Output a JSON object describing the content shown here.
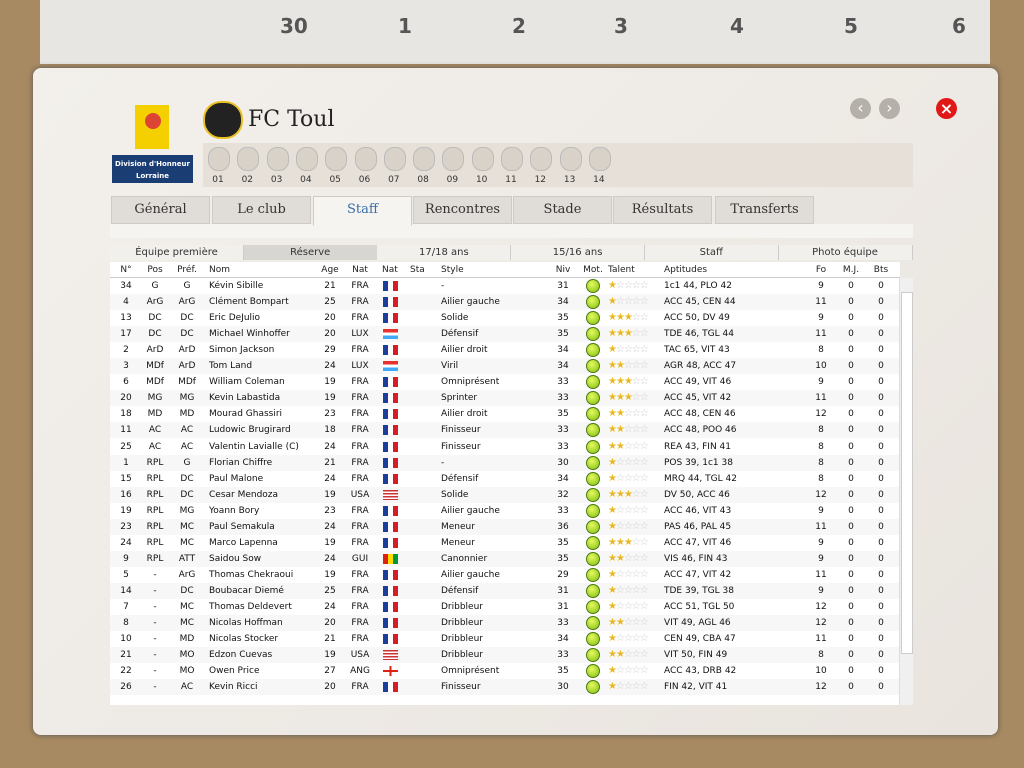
{
  "calendar": {
    "days": [
      30,
      1,
      2,
      3,
      4,
      5,
      6
    ]
  },
  "header": {
    "title": "FC Toul",
    "league": [
      "Division d'Honneur",
      "Lorraine"
    ],
    "clubs": [
      "01",
      "02",
      "03",
      "04",
      "05",
      "06",
      "07",
      "08",
      "09",
      "10",
      "11",
      "12",
      "13",
      "14"
    ]
  },
  "tabs": [
    "Général",
    "Le club",
    "Staff",
    "Rencontres",
    "Stade",
    "Résultats",
    "Transferts"
  ],
  "subtabs": [
    "Équipe première",
    "Réserve",
    "17/18 ans",
    "15/16 ans",
    "Staff",
    "Photo équipe"
  ],
  "table": {
    "columns": [
      "N°",
      "Pos",
      "Préf.",
      "Nom",
      "Age",
      "Nat",
      "Nat",
      "Sta",
      "Style",
      "Niv",
      "Mot.",
      "Talent",
      "Aptitudes",
      "Fo",
      "M.J.",
      "Bts"
    ],
    "rows": [
      {
        "no": 34,
        "pos": "G",
        "pref": "G",
        "name": "Kévin Sibille",
        "age": 21,
        "nat": "FRA",
        "style": "-",
        "niv": 31,
        "talent": 1,
        "apt": "1c1 44, PLO 42",
        "fo": 9,
        "mj": 0,
        "bts": 0
      },
      {
        "no": 4,
        "pos": "ArG",
        "pref": "ArG",
        "name": "Clément Bompart",
        "age": 25,
        "nat": "FRA",
        "style": "Ailier gauche",
        "niv": 34,
        "talent": 1,
        "apt": "ACC 45, CEN 44",
        "fo": 11,
        "mj": 0,
        "bts": 0
      },
      {
        "no": 13,
        "pos": "DC",
        "pref": "DC",
        "name": "Eric DeJulio",
        "age": 20,
        "nat": "FRA",
        "style": "Solide",
        "niv": 35,
        "talent": 3,
        "apt": "ACC 50, DV 49",
        "fo": 9,
        "mj": 0,
        "bts": 0
      },
      {
        "no": 17,
        "pos": "DC",
        "pref": "DC",
        "name": "Michael Winhoffer",
        "age": 20,
        "nat": "LUX",
        "style": "Défensif",
        "niv": 35,
        "talent": 3,
        "apt": "TDE 46, TGL 44",
        "fo": 11,
        "mj": 0,
        "bts": 0
      },
      {
        "no": 2,
        "pos": "ArD",
        "pref": "ArD",
        "name": "Simon Jackson",
        "age": 29,
        "nat": "FRA",
        "style": "Ailier droit",
        "niv": 34,
        "talent": 1,
        "apt": "TAC 65, VIT 43",
        "fo": 8,
        "mj": 0,
        "bts": 0
      },
      {
        "no": 3,
        "pos": "MDf",
        "pref": "ArD",
        "name": "Tom Land",
        "age": 24,
        "nat": "LUX",
        "style": "Viril",
        "niv": 34,
        "talent": 2,
        "apt": "AGR 48, ACC 47",
        "fo": 10,
        "mj": 0,
        "bts": 0
      },
      {
        "no": 6,
        "pos": "MDf",
        "pref": "MDf",
        "name": "William Coleman",
        "age": 19,
        "nat": "FRA",
        "style": "Omniprésent",
        "niv": 33,
        "talent": 3,
        "apt": "ACC 49, VIT 46",
        "fo": 9,
        "mj": 0,
        "bts": 0
      },
      {
        "no": 20,
        "pos": "MG",
        "pref": "MG",
        "name": "Kevin Labastida",
        "age": 19,
        "nat": "FRA",
        "style": "Sprinter",
        "niv": 33,
        "talent": 3,
        "apt": "ACC 45, VIT 42",
        "fo": 11,
        "mj": 0,
        "bts": 0
      },
      {
        "no": 18,
        "pos": "MD",
        "pref": "MD",
        "name": "Mourad Ghassiri",
        "age": 23,
        "nat": "FRA",
        "style": "Ailier droit",
        "niv": 35,
        "talent": 2,
        "apt": "ACC 48, CEN 46",
        "fo": 12,
        "mj": 0,
        "bts": 0
      },
      {
        "no": 11,
        "pos": "AC",
        "pref": "AC",
        "name": "Ludowic Brugirard",
        "age": 18,
        "nat": "FRA",
        "style": "Finisseur",
        "niv": 33,
        "talent": 2,
        "apt": "ACC 48, POO 46",
        "fo": 8,
        "mj": 0,
        "bts": 0
      },
      {
        "no": 25,
        "pos": "AC",
        "pref": "AC",
        "name": "Valentin Lavialle (C)",
        "age": 24,
        "nat": "FRA",
        "style": "Finisseur",
        "niv": 33,
        "talent": 2,
        "apt": "REA 43, FIN 41",
        "fo": 8,
        "mj": 0,
        "bts": 0
      },
      {
        "no": 1,
        "pos": "RPL",
        "pref": "G",
        "name": "Florian Chiffre",
        "age": 21,
        "nat": "FRA",
        "style": "-",
        "niv": 30,
        "talent": 1,
        "apt": "POS 39, 1c1 38",
        "fo": 8,
        "mj": 0,
        "bts": 0
      },
      {
        "no": 15,
        "pos": "RPL",
        "pref": "DC",
        "name": "Paul Malone",
        "age": 24,
        "nat": "FRA",
        "style": "Défensif",
        "niv": 34,
        "talent": 1,
        "apt": "MRQ 44, TGL 42",
        "fo": 8,
        "mj": 0,
        "bts": 0
      },
      {
        "no": 16,
        "pos": "RPL",
        "pref": "DC",
        "name": "Cesar Mendoza",
        "age": 19,
        "nat": "USA",
        "style": "Solide",
        "niv": 32,
        "talent": 3,
        "apt": "DV 50, ACC 46",
        "fo": 12,
        "mj": 0,
        "bts": 0
      },
      {
        "no": 19,
        "pos": "RPL",
        "pref": "MG",
        "name": "Yoann Bory",
        "age": 23,
        "nat": "FRA",
        "style": "Ailier gauche",
        "niv": 33,
        "talent": 1,
        "apt": "ACC 46, VIT 43",
        "fo": 9,
        "mj": 0,
        "bts": 0
      },
      {
        "no": 23,
        "pos": "RPL",
        "pref": "MC",
        "name": "Paul Semakula",
        "age": 24,
        "nat": "FRA",
        "style": "Meneur",
        "niv": 36,
        "talent": 1,
        "apt": "PAS 46, PAL 45",
        "fo": 11,
        "mj": 0,
        "bts": 0
      },
      {
        "no": 24,
        "pos": "RPL",
        "pref": "MC",
        "name": "Marco Lapenna",
        "age": 19,
        "nat": "FRA",
        "style": "Meneur",
        "niv": 35,
        "talent": 3,
        "apt": "ACC 47, VIT 46",
        "fo": 9,
        "mj": 0,
        "bts": 0
      },
      {
        "no": 9,
        "pos": "RPL",
        "pref": "ATT",
        "name": "Saidou Sow",
        "age": 24,
        "nat": "GUI",
        "style": "Canonnier",
        "niv": 35,
        "talent": 2,
        "apt": "VIS 46, FIN 43",
        "fo": 9,
        "mj": 0,
        "bts": 0
      },
      {
        "no": 5,
        "pos": "-",
        "pref": "ArG",
        "name": "Thomas Chekraoui",
        "age": 19,
        "nat": "FRA",
        "style": "Ailier gauche",
        "niv": 29,
        "talent": 1,
        "apt": "ACC 47, VIT 42",
        "fo": 11,
        "mj": 0,
        "bts": 0
      },
      {
        "no": 14,
        "pos": "-",
        "pref": "DC",
        "name": "Boubacar Diemé",
        "age": 25,
        "nat": "FRA",
        "style": "Défensif",
        "niv": 31,
        "talent": 1,
        "apt": "TDE 39, TGL 38",
        "fo": 9,
        "mj": 0,
        "bts": 0
      },
      {
        "no": 7,
        "pos": "-",
        "pref": "MC",
        "name": "Thomas Deldevert",
        "age": 24,
        "nat": "FRA",
        "style": "Dribbleur",
        "niv": 31,
        "talent": 1,
        "apt": "ACC 51, TGL 50",
        "fo": 12,
        "mj": 0,
        "bts": 0
      },
      {
        "no": 8,
        "pos": "-",
        "pref": "MC",
        "name": "Nicolas Hoffman",
        "age": 20,
        "nat": "FRA",
        "style": "Dribbleur",
        "niv": 33,
        "talent": 2,
        "apt": "VIT 49, AGL 46",
        "fo": 12,
        "mj": 0,
        "bts": 0
      },
      {
        "no": 10,
        "pos": "-",
        "pref": "MD",
        "name": "Nicolas Stocker",
        "age": 21,
        "nat": "FRA",
        "style": "Dribbleur",
        "niv": 34,
        "talent": 1,
        "apt": "CEN 49, CBA 47",
        "fo": 11,
        "mj": 0,
        "bts": 0
      },
      {
        "no": 21,
        "pos": "-",
        "pref": "MO",
        "name": "Edzon Cuevas",
        "age": 19,
        "nat": "USA",
        "style": "Dribbleur",
        "niv": 33,
        "talent": 2,
        "apt": "VIT 50, FIN 49",
        "fo": 8,
        "mj": 0,
        "bts": 0
      },
      {
        "no": 22,
        "pos": "-",
        "pref": "MO",
        "name": "Owen Price",
        "age": 27,
        "nat": "ANG",
        "style": "Omniprésent",
        "niv": 35,
        "talent": 1,
        "apt": "ACC 43, DRB 42",
        "fo": 10,
        "mj": 0,
        "bts": 0
      },
      {
        "no": 26,
        "pos": "-",
        "pref": "AC",
        "name": "Kevin Ricci",
        "age": 20,
        "nat": "FRA",
        "style": "Finisseur",
        "niv": 30,
        "talent": 1,
        "apt": "FIN 42, VIT 41",
        "fo": 12,
        "mj": 0,
        "bts": 0
      }
    ]
  }
}
